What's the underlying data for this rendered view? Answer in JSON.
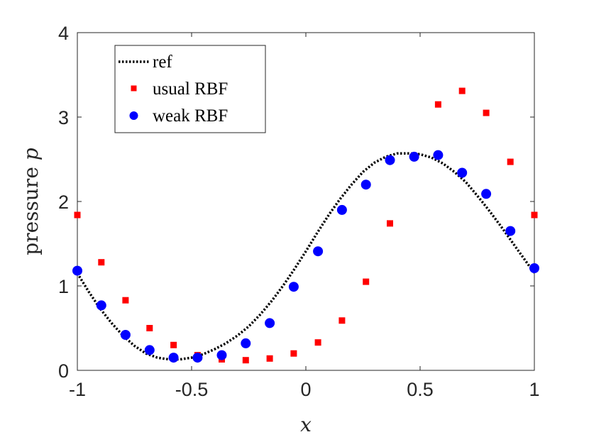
{
  "chart_data": {
    "type": "scatter",
    "xlabel": "x",
    "ylabel_text": "pressure ",
    "ylabel_symbol": "p",
    "xlim": [
      -1,
      1
    ],
    "ylim": [
      0,
      4
    ],
    "xticks": [
      "-1",
      "-0.5",
      "0",
      "0.5",
      "1"
    ],
    "xtick_values": [
      -1,
      -0.5,
      0,
      0.5,
      1
    ],
    "yticks": [
      "0",
      "1",
      "2",
      "3",
      "4"
    ],
    "ytick_values": [
      0,
      1,
      2,
      3,
      4
    ],
    "grid": false,
    "legend_position": "top-left",
    "series": [
      {
        "name": "ref",
        "style": "dotted-line",
        "color": "#000000",
        "x": [
          -1.0,
          -0.95,
          -0.9,
          -0.85,
          -0.8,
          -0.75,
          -0.7,
          -0.65,
          -0.6,
          -0.55,
          -0.5,
          -0.45,
          -0.4,
          -0.35,
          -0.3,
          -0.25,
          -0.2,
          -0.15,
          -0.1,
          -0.05,
          0.0,
          0.05,
          0.1,
          0.15,
          0.2,
          0.25,
          0.3,
          0.35,
          0.4,
          0.45,
          0.5,
          0.55,
          0.6,
          0.65,
          0.7,
          0.75,
          0.8,
          0.85,
          0.9,
          0.95,
          1.0
        ],
        "y": [
          1.15,
          0.93,
          0.73,
          0.56,
          0.41,
          0.29,
          0.2,
          0.15,
          0.13,
          0.13,
          0.15,
          0.19,
          0.25,
          0.32,
          0.41,
          0.52,
          0.66,
          0.82,
          1.0,
          1.2,
          1.41,
          1.63,
          1.84,
          2.03,
          2.2,
          2.35,
          2.46,
          2.53,
          2.57,
          2.57,
          2.56,
          2.52,
          2.45,
          2.35,
          2.23,
          2.07,
          1.9,
          1.72,
          1.53,
          1.34,
          1.15
        ]
      },
      {
        "name": "usual RBF",
        "style": "square-marker",
        "color": "#ff0000",
        "x": [
          -1.0,
          -0.895,
          -0.789,
          -0.684,
          -0.579,
          -0.474,
          -0.368,
          -0.263,
          -0.158,
          -0.053,
          0.053,
          0.158,
          0.263,
          0.368,
          0.474,
          0.579,
          0.684,
          0.789,
          0.895,
          1.0
        ],
        "y": [
          1.84,
          1.28,
          0.83,
          0.5,
          0.3,
          0.18,
          0.13,
          0.12,
          0.14,
          0.2,
          0.33,
          0.59,
          1.05,
          1.74,
          2.54,
          3.15,
          3.31,
          3.05,
          2.47,
          1.84
        ]
      },
      {
        "name": "weak RBF",
        "style": "circle-marker",
        "color": "#0000ff",
        "x": [
          -1.0,
          -0.895,
          -0.789,
          -0.684,
          -0.579,
          -0.474,
          -0.368,
          -0.263,
          -0.158,
          -0.053,
          0.053,
          0.158,
          0.263,
          0.368,
          0.474,
          0.579,
          0.684,
          0.789,
          0.895,
          1.0
        ],
        "y": [
          1.18,
          0.77,
          0.42,
          0.24,
          0.15,
          0.15,
          0.18,
          0.32,
          0.56,
          0.99,
          1.41,
          1.9,
          2.2,
          2.49,
          2.53,
          2.55,
          2.34,
          2.09,
          1.65,
          1.21
        ]
      }
    ]
  }
}
